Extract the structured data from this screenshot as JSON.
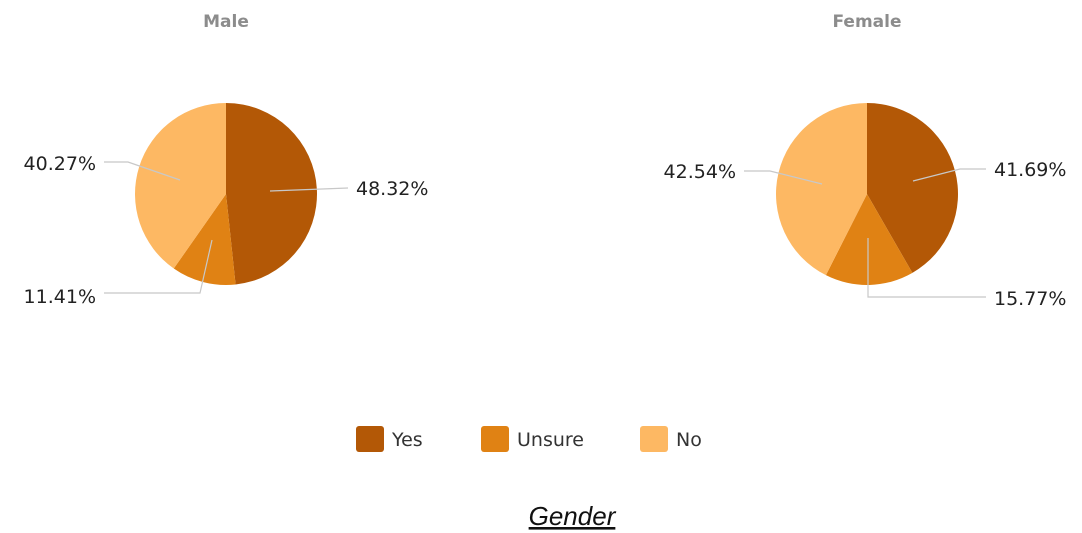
{
  "chart_data": {
    "type": "pie",
    "categories": [
      "Yes",
      "Unsure",
      "No"
    ],
    "colors": [
      "#b35806",
      "#e08214",
      "#fdb863"
    ],
    "charts": [
      {
        "title": "Male",
        "values": [
          48.32,
          11.41,
          40.27
        ],
        "labels": [
          "48.32%",
          "11.41%",
          "40.27%"
        ]
      },
      {
        "title": "Female",
        "values": [
          41.69,
          15.77,
          42.54
        ],
        "labels": [
          "41.69%",
          "15.77%",
          "42.54%"
        ]
      }
    ],
    "legend": {
      "placement": "bottom",
      "items": [
        "Yes",
        "Unsure",
        "No"
      ]
    },
    "caption": "Gender"
  }
}
